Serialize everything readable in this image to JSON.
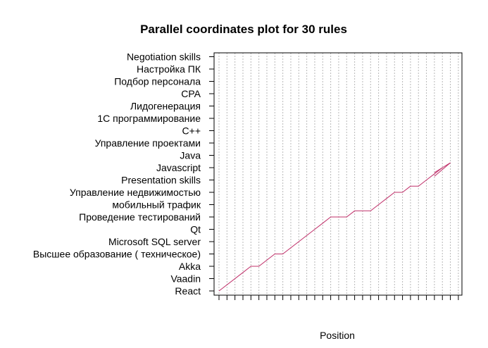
{
  "chart_data": {
    "type": "line",
    "title": "Parallel coordinates plot for 30 rules",
    "xlabel": "Position",
    "ylabel": "",
    "categories": [
      "React",
      "Vaadin",
      "Akka",
      "Высшее образование ( техническое)",
      "Microsoft SQL server",
      "Qt",
      "Проведение тестирований",
      "мобильный трафик",
      "Управление недвижимостью",
      "Presentation skills",
      "Javascript",
      "Java",
      "Управление проектами",
      "C++",
      "1С программирование",
      "Лидогенерация",
      "CPA",
      "Подбор персонала",
      "Настройка ПК",
      "Negotiation skills"
    ],
    "x_positions": 31,
    "grid": true,
    "series": [
      {
        "color": "#c0306a",
        "points": [
          [
            1,
            0
          ],
          [
            4,
            1.5
          ],
          [
            5,
            2
          ],
          [
            6,
            2
          ],
          [
            8,
            3
          ],
          [
            9,
            3
          ],
          [
            13,
            5
          ],
          [
            14,
            5.5
          ],
          [
            15,
            6
          ],
          [
            17,
            6
          ],
          [
            18,
            6.5
          ],
          [
            20,
            6.5
          ],
          [
            21,
            7
          ],
          [
            22,
            7.5
          ],
          [
            23,
            8
          ],
          [
            24,
            8
          ],
          [
            25,
            8.5
          ],
          [
            26,
            8.5
          ],
          [
            27,
            9
          ],
          [
            28,
            9.5
          ],
          [
            29,
            10
          ]
        ]
      },
      {
        "color": "#c0306a",
        "points": [
          [
            28,
            9.6
          ],
          [
            30,
            10.4
          ]
        ]
      },
      {
        "color": "#c0306a",
        "points": [
          [
            28,
            9.3
          ],
          [
            30,
            10.4
          ]
        ]
      }
    ]
  }
}
